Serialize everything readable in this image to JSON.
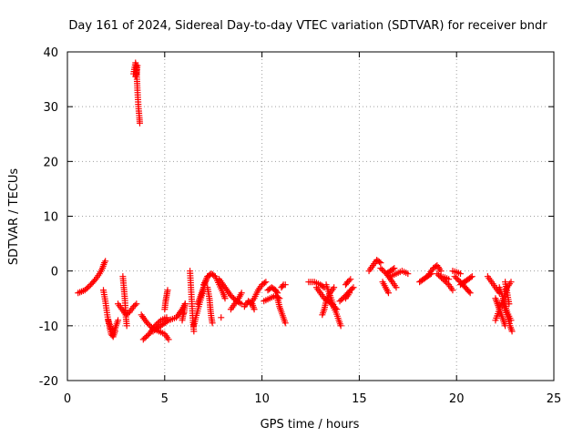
{
  "chart_data": {
    "type": "scatter",
    "title": "Day 161 of 2024, Sidereal Day-to-day VTEC variation (SDTVAR) for receiver bndr",
    "xlabel": "GPS time / hours",
    "ylabel": "SDTVAR / TECUs",
    "xlim": [
      0,
      25
    ],
    "ylim": [
      -20,
      40
    ],
    "xticks": [
      0,
      5,
      10,
      15,
      20,
      25
    ],
    "yticks": [
      -20,
      -10,
      0,
      10,
      20,
      30,
      40
    ],
    "xtick_labels": [
      "0",
      "5",
      "10",
      "15",
      "20",
      "25"
    ],
    "ytick_labels": [
      "-20",
      "-10",
      "0",
      "10",
      "20",
      "30",
      "40"
    ],
    "grid": true,
    "marker": "+",
    "color": "#ff0000",
    "segments": [
      {
        "x": [
          0.55,
          0.9,
          1.2,
          1.45,
          1.65,
          1.8,
          1.9,
          1.95
        ],
        "y": [
          -4,
          -3.5,
          -2.5,
          -1.5,
          -0.5,
          0.5,
          1.5,
          1.8
        ]
      },
      {
        "x": [
          1.85,
          1.95,
          2.05,
          2.15,
          2.25,
          2.35,
          2.45
        ],
        "y": [
          -3.5,
          -5.5,
          -8,
          -10,
          -11.5,
          -12,
          -11
        ]
      },
      {
        "x": [
          2.1,
          2.25,
          2.4,
          2.5,
          2.6
        ],
        "y": [
          -9,
          -10.5,
          -11,
          -10,
          -9
        ]
      },
      {
        "x": [
          2.6,
          2.8,
          3.0,
          3.2,
          3.4,
          3.55
        ],
        "y": [
          -6,
          -7,
          -8,
          -7.5,
          -6.5,
          -6
        ]
      },
      {
        "x": [
          2.85,
          2.9,
          2.95,
          3.0,
          3.05
        ],
        "y": [
          -1,
          -3,
          -5,
          -8,
          -10
        ]
      },
      {
        "x": [
          3.4,
          3.5,
          3.55,
          3.6,
          3.65,
          3.7,
          3.72
        ],
        "y": [
          36,
          38,
          37,
          33,
          30,
          28,
          27
        ]
      },
      {
        "x": [
          3.5,
          3.55,
          3.6
        ],
        "y": [
          35.5,
          36,
          37.5
        ]
      },
      {
        "x": [
          3.8,
          4.1,
          4.4,
          4.7,
          5.0,
          5.2
        ],
        "y": [
          -8,
          -9.5,
          -10.5,
          -11,
          -11.5,
          -12.5
        ]
      },
      {
        "x": [
          3.9,
          4.2,
          4.5,
          4.8,
          5.1
        ],
        "y": [
          -12.5,
          -11.5,
          -10,
          -9,
          -8.5
        ]
      },
      {
        "x": [
          4.4,
          4.8,
          5.2,
          5.6,
          5.9,
          6.05
        ],
        "y": [
          -11,
          -10,
          -9,
          -8.5,
          -7,
          -6
        ]
      },
      {
        "x": [
          5.0,
          5.05,
          5.1,
          5.15
        ],
        "y": [
          -7,
          -5.5,
          -4.5,
          -3.5
        ]
      },
      {
        "x": [
          5.9,
          5.95,
          6.0,
          6.05
        ],
        "y": [
          -9,
          -8,
          -7.5,
          -6
        ]
      },
      {
        "x": [
          6.3,
          6.35,
          6.4,
          6.45,
          6.5
        ],
        "y": [
          0,
          -3,
          -6,
          -9,
          -11
        ]
      },
      {
        "x": [
          6.5,
          6.6,
          6.75,
          6.9,
          7.0
        ],
        "y": [
          -10,
          -8.5,
          -6.5,
          -4.5,
          -3
        ]
      },
      {
        "x": [
          6.7,
          6.8,
          6.9,
          7.0,
          7.1,
          7.2
        ],
        "y": [
          -6,
          -5,
          -4,
          -3,
          -2,
          -1
        ]
      },
      {
        "x": [
          7.0,
          7.2,
          7.4,
          7.6,
          7.8,
          8.0,
          8.1
        ],
        "y": [
          -2.5,
          -1,
          -0.5,
          -1,
          -2.5,
          -4,
          -5
        ]
      },
      {
        "x": [
          7.2,
          7.3,
          7.35,
          7.4,
          7.45
        ],
        "y": [
          -3,
          -5,
          -7,
          -8.5,
          -9.5
        ]
      },
      {
        "x": [
          7.8,
          8.1,
          8.4,
          8.7,
          8.95
        ],
        "y": [
          -1.5,
          -3,
          -4.5,
          -5.5,
          -6
        ]
      },
      {
        "x": [
          8.4,
          8.6,
          8.8,
          8.95
        ],
        "y": [
          -7,
          -6,
          -5,
          -4
        ]
      },
      {
        "x": [
          7.9
        ],
        "y": [
          -8.5
        ]
      },
      {
        "x": [
          9.1,
          9.3,
          9.5,
          9.6
        ],
        "y": [
          -6.5,
          -5.5,
          -6,
          -7
        ]
      },
      {
        "x": [
          9.4,
          9.6,
          9.8,
          10.0,
          10.2
        ],
        "y": [
          -6,
          -5,
          -3.5,
          -2.5,
          -2
        ]
      },
      {
        "x": [
          10.1,
          10.4,
          10.7,
          10.9
        ],
        "y": [
          -5.5,
          -5,
          -4.5,
          -5
        ]
      },
      {
        "x": [
          10.3,
          10.5,
          10.7,
          10.8
        ],
        "y": [
          -3.5,
          -3,
          -3.5,
          -4
        ]
      },
      {
        "x": [
          10.8,
          10.9,
          11.0,
          11.1,
          11.2
        ],
        "y": [
          -5,
          -6.5,
          -7.5,
          -8.5,
          -9.5
        ]
      },
      {
        "x": [
          11.0,
          11.1,
          11.2
        ],
        "y": [
          -3,
          -2.5,
          -2.5
        ]
      },
      {
        "x": [
          12.4,
          12.7,
          13.0,
          13.2
        ],
        "y": [
          -2,
          -2,
          -2.5,
          -3
        ]
      },
      {
        "x": [
          12.8,
          13.0,
          13.2,
          13.4,
          13.6
        ],
        "y": [
          -3,
          -4,
          -5,
          -5.5,
          -6
        ]
      },
      {
        "x": [
          13.1,
          13.2,
          13.3,
          13.5,
          13.7
        ],
        "y": [
          -8,
          -7,
          -5.5,
          -4,
          -3
        ]
      },
      {
        "x": [
          13.3,
          13.5,
          13.7,
          13.85
        ],
        "y": [
          -2.5,
          -4.5,
          -6.5,
          -7
        ]
      },
      {
        "x": [
          13.6,
          13.8,
          13.95,
          14.05
        ],
        "y": [
          -6,
          -7.5,
          -9,
          -10
        ]
      },
      {
        "x": [
          14.0,
          14.3,
          14.55,
          14.7
        ],
        "y": [
          -5.5,
          -4.5,
          -3.5,
          -3
        ]
      },
      {
        "x": [
          14.3,
          14.4,
          14.55
        ],
        "y": [
          -2.5,
          -2,
          -1.5
        ]
      },
      {
        "x": [
          14.3,
          14.5
        ],
        "y": [
          -5,
          -4
        ]
      },
      {
        "x": [
          15.5,
          15.7,
          15.9,
          16.1
        ],
        "y": [
          0,
          1,
          2,
          1.5
        ]
      },
      {
        "x": [
          16.2,
          16.35,
          16.5
        ],
        "y": [
          -2,
          -3,
          -4
        ]
      },
      {
        "x": [
          16.1,
          16.4,
          16.7,
          16.9
        ],
        "y": [
          0.5,
          -0.5,
          -2,
          -3
        ]
      },
      {
        "x": [
          16.6,
          16.9,
          17.2,
          17.5
        ],
        "y": [
          -1,
          -0.5,
          0,
          -0.5
        ]
      },
      {
        "x": [
          16.4,
          16.6,
          16.8
        ],
        "y": [
          -0.5,
          0,
          0.5
        ]
      },
      {
        "x": [
          18.1,
          18.3,
          18.5,
          18.7
        ],
        "y": [
          -2,
          -1.5,
          -1,
          -0.5
        ]
      },
      {
        "x": [
          18.6,
          18.8,
          19.0,
          19.2
        ],
        "y": [
          -0.5,
          0.5,
          1,
          0
        ]
      },
      {
        "x": [
          19.0,
          19.3,
          19.6,
          19.8
        ],
        "y": [
          -0.5,
          -1.5,
          -2.5,
          -3.5
        ]
      },
      {
        "x": [
          19.2,
          19.4,
          19.6
        ],
        "y": [
          -1,
          -1.2,
          -1.5
        ]
      },
      {
        "x": [
          19.9,
          20.2,
          20.45,
          20.7
        ],
        "y": [
          -1,
          -2,
          -3,
          -4
        ]
      },
      {
        "x": [
          20.2,
          20.4,
          20.6,
          20.8
        ],
        "y": [
          -2.5,
          -2,
          -1.5,
          -1
        ]
      },
      {
        "x": [
          19.8,
          20.0,
          20.2
        ],
        "y": [
          0,
          -0.2,
          -0.5
        ]
      },
      {
        "x": [
          21.6,
          21.8,
          22.0,
          22.2
        ],
        "y": [
          -1,
          -2,
          -3,
          -4
        ]
      },
      {
        "x": [
          22.0,
          22.1,
          22.2,
          22.3,
          22.4,
          22.5
        ],
        "y": [
          -5,
          -6,
          -7,
          -8,
          -9,
          -10
        ]
      },
      {
        "x": [
          22.0,
          22.2,
          22.4,
          22.6,
          22.8
        ],
        "y": [
          -9,
          -7,
          -5,
          -3,
          -2
        ]
      },
      {
        "x": [
          22.2,
          22.4,
          22.6,
          22.8
        ],
        "y": [
          -3,
          -5,
          -7.5,
          -9
        ]
      },
      {
        "x": [
          22.4,
          22.6,
          22.75,
          22.85
        ],
        "y": [
          -6,
          -8,
          -10,
          -11
        ]
      },
      {
        "x": [
          22.5,
          22.6,
          22.7
        ],
        "y": [
          -2,
          -4,
          -6
        ]
      }
    ]
  }
}
